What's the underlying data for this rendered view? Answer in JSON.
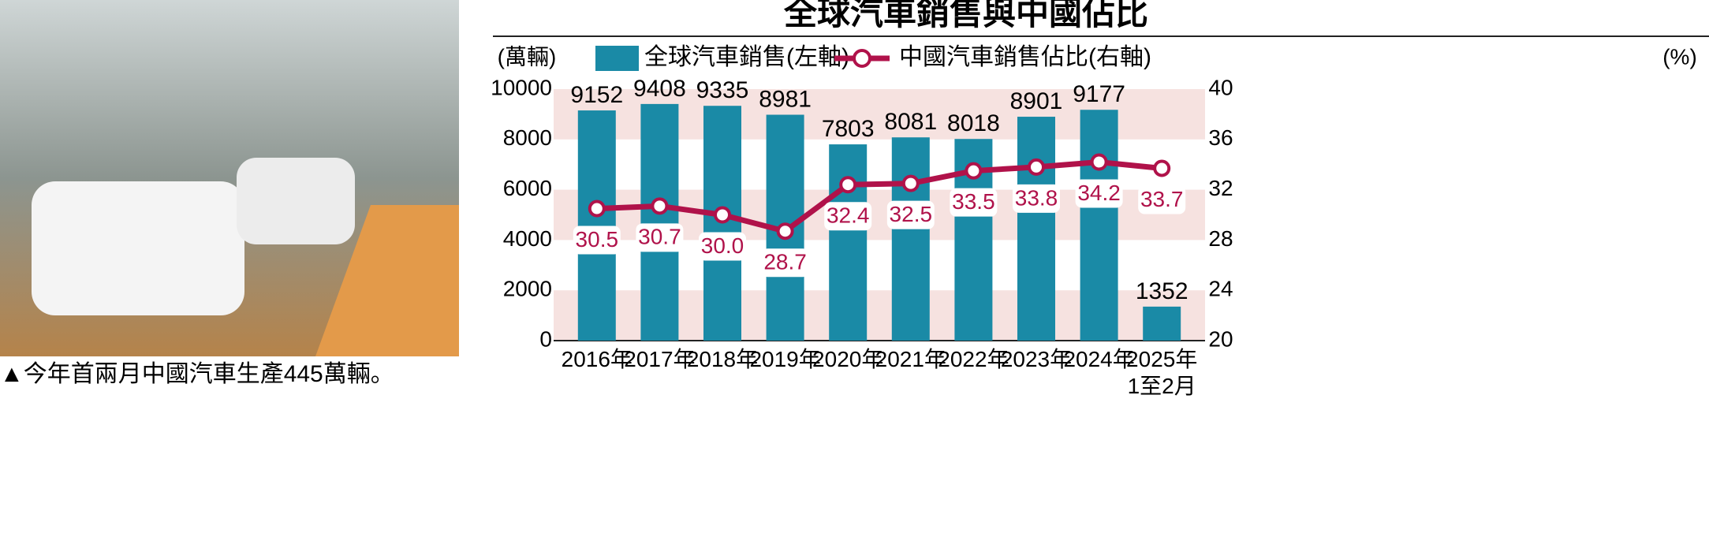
{
  "caption": "▲今年首兩月中國汽車生產445萬輛。",
  "chart_data": {
    "type": "bar_line",
    "title": "全球汽車銷售與中國佔比",
    "y_label": "(萬輛)",
    "y2_label": "(%)",
    "categories": [
      "2016年",
      "2017年",
      "2018年",
      "2019年",
      "2020年",
      "2021年",
      "2022年",
      "2023年",
      "2024年",
      "2025年\n1至2月"
    ],
    "series": [
      {
        "name": "全球汽車銷售(左軸)",
        "color": "#1a8aa6",
        "kind": "bar",
        "values": [
          9152,
          9408,
          9335,
          8981,
          7803,
          8081,
          8018,
          8901,
          9177,
          1352
        ]
      },
      {
        "name": "中國汽車銷售佔比(右軸)",
        "color": "#b0124a",
        "kind": "line",
        "axis": "y2",
        "values": [
          30.5,
          30.7,
          30.0,
          28.7,
          32.4,
          32.5,
          33.5,
          33.8,
          34.2,
          33.7
        ],
        "value_labels": [
          "30.5",
          "30.7",
          "30.0",
          "28.7",
          "32.4",
          "32.5",
          "33.5",
          "33.8",
          "34.2",
          "33.7"
        ]
      }
    ],
    "ylim": [
      0,
      10000
    ],
    "yticks": [
      0,
      2000,
      4000,
      6000,
      8000,
      10000
    ],
    "y2lim": [
      20,
      40
    ],
    "y2ticks": [
      20,
      24,
      28,
      32,
      36,
      40
    ],
    "background_bands": "#f6e2e0"
  }
}
